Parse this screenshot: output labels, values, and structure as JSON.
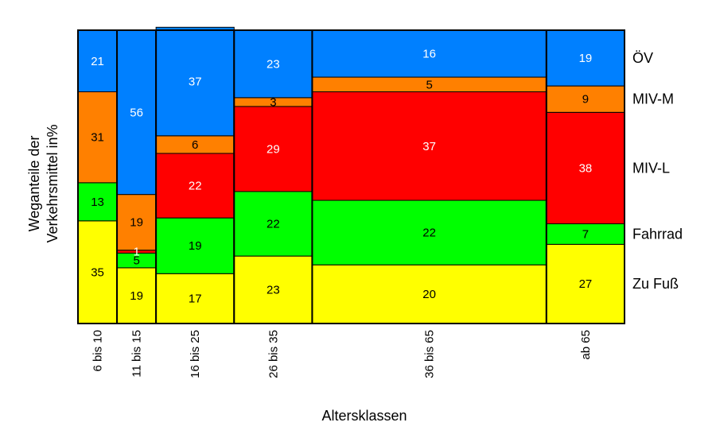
{
  "chart_data": {
    "type": "bar",
    "subtype": "mosaic",
    "xlabel": "Altersklassen",
    "ylabel_lines": [
      "Weganteile der",
      "Verkehrsmittel in%"
    ],
    "categories": [
      "6 bis 10",
      "11 bis 15",
      "16 bis 25",
      "26 bis 35",
      "36 bis 65",
      "ab 65"
    ],
    "category_widths": [
      1,
      1,
      2,
      2,
      6,
      2
    ],
    "ylim": [
      0,
      100
    ],
    "grid": false,
    "legend_position": "right",
    "series": [
      {
        "name": "Zu Fuß",
        "color": "#ffff00",
        "values": [
          35,
          19,
          17,
          23,
          20,
          27
        ]
      },
      {
        "name": "Fahrrad",
        "color": "#00ff00",
        "values": [
          13,
          5,
          19,
          22,
          22,
          7
        ]
      },
      {
        "name": "MIV-L",
        "color": "#ff0000",
        "values": [
          0,
          1,
          22,
          29,
          37,
          38
        ]
      },
      {
        "name": "MIV-M",
        "color": "#ff8000",
        "values": [
          31,
          19,
          6,
          3,
          5,
          9
        ]
      },
      {
        "name": "ÖV",
        "color": "#0080ff",
        "values": [
          21,
          56,
          37,
          23,
          16,
          19
        ]
      }
    ],
    "value_labels": [
      [
        "35",
        "19",
        "17",
        "23",
        "20",
        "27"
      ],
      [
        "13",
        "5",
        "19",
        "22",
        "22",
        "7"
      ],
      [
        "",
        "1",
        "22",
        "29",
        "37",
        "38"
      ],
      [
        "31",
        "19",
        "6",
        "3",
        "5",
        "9"
      ],
      [
        "21",
        "56",
        "37",
        "23",
        "16",
        "19"
      ]
    ],
    "value_label_colors": [
      [
        "#000000",
        "#000000",
        "#000000",
        "#000000",
        "#000000",
        "#000000"
      ],
      [
        "#000000",
        "#000000",
        "#000000",
        "#000000",
        "#000000",
        "#000000"
      ],
      [
        "#ffffff",
        "#ffffff",
        "#ffffff",
        "#ffffff",
        "#ffffff",
        "#ffffff"
      ],
      [
        "#000000",
        "#000000",
        "#000000",
        "#000000",
        "#000000",
        "#000000"
      ],
      [
        "#ffffff",
        "#ffffff",
        "#ffffff",
        "#ffffff",
        "#ffffff",
        "#ffffff"
      ]
    ]
  }
}
